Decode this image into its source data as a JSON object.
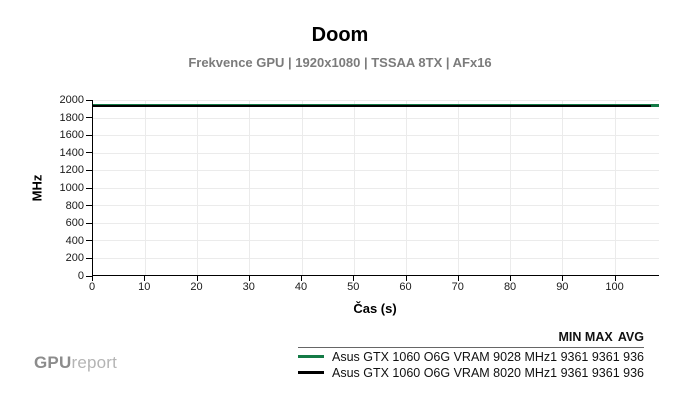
{
  "title": "Doom",
  "subtitle": "Frekvence GPU | 1920x1080 | TSSAA 8TX | AFx16",
  "logo": {
    "bold": "GPU",
    "light": "report"
  },
  "chart_data": {
    "type": "line",
    "title": "Doom",
    "subtitle": "Frekvence GPU | 1920x1080 | TSSAA 8TX | AFx16",
    "xlabel": "Čas (s)",
    "ylabel": "MHz",
    "xlim": [
      0,
      108.5
    ],
    "ylim": [
      0,
      2000
    ],
    "x_ticks": [
      0,
      10,
      20,
      30,
      40,
      50,
      60,
      70,
      80,
      90,
      100
    ],
    "y_ticks": [
      0,
      200,
      400,
      600,
      800,
      1000,
      1200,
      1400,
      1600,
      1800,
      2000
    ],
    "grid": true,
    "legend_position": "bottom-right",
    "series": [
      {
        "name": "Asus GTX 1060 O6G VRAM 9028 MHz",
        "color": "#147a46",
        "value_mhz": 1936,
        "x_start": 0,
        "x_end": 108.5,
        "min": 1936,
        "max": 1936,
        "avg": 1936
      },
      {
        "name": "Asus GTX 1060 O6G VRAM 8020 MHz",
        "color": "#000000",
        "value_mhz": 1936,
        "x_start": 0,
        "x_end": 107,
        "min": 1936,
        "max": 1936,
        "avg": 1936
      }
    ]
  },
  "legend": {
    "headers": {
      "min": "MIN",
      "max": "MAX",
      "avg": "AVG"
    },
    "rows": [
      {
        "name": "Asus GTX 1060 O6G VRAM 9028 MHz",
        "color": "#147a46",
        "min": "1 936",
        "max": "1 936",
        "avg": "1 936"
      },
      {
        "name": "Asus GTX 1060 O6G VRAM 8020 MHz",
        "color": "#000000",
        "min": "1 936",
        "max": "1 936",
        "avg": "1 936"
      }
    ]
  }
}
